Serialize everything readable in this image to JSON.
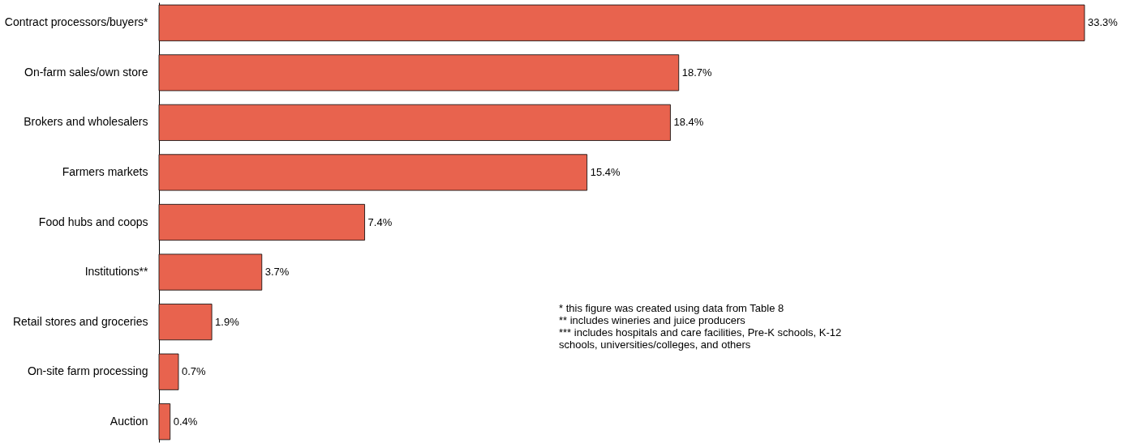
{
  "chart_data": {
    "type": "bar",
    "orientation": "horizontal",
    "categories": [
      "Contract processors/buyers*",
      "On-farm sales/own store",
      "Brokers and wholesalers",
      "Farmers markets",
      "Food hubs and coops",
      "Institutions**",
      "Retail stores and groceries",
      "On-site farm processing",
      "Auction"
    ],
    "values": [
      33.3,
      18.7,
      18.4,
      15.4,
      7.4,
      3.7,
      1.9,
      0.7,
      0.4
    ],
    "value_labels": [
      "33.3%",
      "18.7%",
      "18.4%",
      "15.4%",
      "7.4%",
      "3.7%",
      "1.9%",
      "0.7%",
      "0.4%"
    ],
    "color": "#e8634e",
    "annotations": [
      "* this figure was created using data from Table 8",
      "** includes wineries and juice producers",
      "*** includes hospitals and care facilities, Pre-K schools, K-12 schools, universities/colleges, and others"
    ],
    "data_labels": false
  }
}
